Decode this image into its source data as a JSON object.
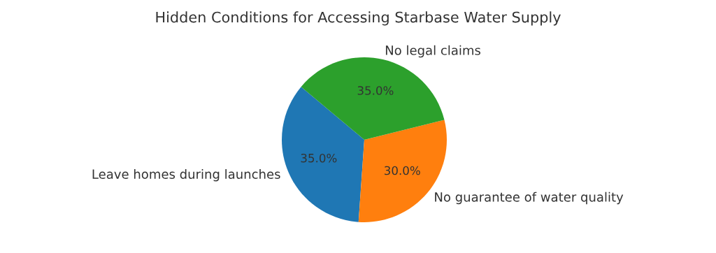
{
  "chart_data": {
    "type": "pie",
    "title": "Hidden Conditions for Accessing Starbase Water Supply",
    "categories": [
      "Leave homes during launches",
      "No guarantee of water quality",
      "No legal claims"
    ],
    "values": [
      35,
      30,
      35
    ],
    "colors": [
      "#1f77b4",
      "#ff7f0e",
      "#2ca02c"
    ],
    "value_labels": [
      "35.0%",
      "30.0%",
      "35.0%"
    ],
    "legend": false
  }
}
